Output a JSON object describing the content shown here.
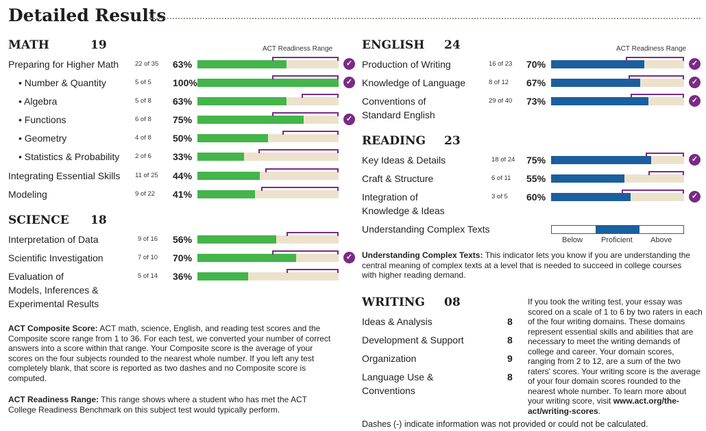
{
  "title": "Detailed Results",
  "readiness_label": "ACT Readiness Range",
  "math": {
    "name": "MATH",
    "score": "19",
    "rows": [
      {
        "label": "Preparing for Higher Math",
        "frac": "22 of 35",
        "pct": "63%",
        "value": 63,
        "range": [
          53,
          100
        ],
        "check": true
      },
      {
        "label": "• Number & Quantity",
        "frac": "5 of 5",
        "pct": "100%",
        "value": 100,
        "range": [
          53,
          100
        ],
        "check": true
      },
      {
        "label": "• Algebra",
        "frac": "5 of 8",
        "pct": "63%",
        "value": 63,
        "range": [
          74,
          100
        ],
        "check": false
      },
      {
        "label": "• Functions",
        "frac": "6 of 8",
        "pct": "75%",
        "value": 75,
        "range": [
          53,
          100
        ],
        "check": true
      },
      {
        "label": "• Geometry",
        "frac": "4 of 8",
        "pct": "50%",
        "value": 50,
        "range": [
          60,
          100
        ],
        "check": false
      },
      {
        "label": "• Statistics & Probability",
        "frac": "2 of 6",
        "pct": "33%",
        "value": 33,
        "range": [
          43,
          100
        ],
        "check": false
      },
      {
        "label": "Integrating Essential Skills",
        "frac": "11 of 25",
        "pct": "44%",
        "value": 44,
        "range": [
          48,
          100
        ],
        "check": false
      },
      {
        "label": "Modeling",
        "frac": "9 of 22",
        "pct": "41%",
        "value": 41,
        "range": [
          45,
          100
        ],
        "check": false
      }
    ]
  },
  "science": {
    "name": "SCIENCE",
    "score": "18",
    "rows": [
      {
        "label": "Interpretation of Data",
        "frac": "9 of 16",
        "pct": "56%",
        "value": 56,
        "range": [
          63,
          100
        ],
        "check": false
      },
      {
        "label": "Scientific Investigation",
        "frac": "7 of 10",
        "pct": "70%",
        "value": 70,
        "range": [
          53,
          100
        ],
        "check": true
      },
      {
        "label": "Evaluation of\nModels, Inferences &\nExperimental Results",
        "frac": "5 of 14",
        "pct": "36%",
        "value": 36,
        "range": [
          63,
          100
        ],
        "check": false
      }
    ]
  },
  "english": {
    "name": "ENGLISH",
    "score": "24",
    "rows": [
      {
        "label": "Production of Writing",
        "frac": "16 of 23",
        "pct": "70%",
        "value": 70,
        "range": [
          56,
          100
        ],
        "check": true
      },
      {
        "label": "Knowledge of Language",
        "frac": "8 of 12",
        "pct": "67%",
        "value": 67,
        "range": [
          58,
          100
        ],
        "check": true
      },
      {
        "label": "Conventions of\nStandard English",
        "frac": "29 of 40",
        "pct": "73%",
        "value": 73,
        "range": [
          60,
          100
        ],
        "check": true
      }
    ]
  },
  "reading": {
    "name": "READING",
    "score": "23",
    "rows": [
      {
        "label": "Key Ideas & Details",
        "frac": "18 of 24",
        "pct": "75%",
        "value": 75,
        "range": [
          71,
          100
        ],
        "check": true
      },
      {
        "label": "Craft & Structure",
        "frac": "6 of 11",
        "pct": "55%",
        "value": 55,
        "range": [
          73,
          100
        ],
        "check": false
      },
      {
        "label": "Integration of\nKnowledge & Ideas",
        "frac": "3 of 5",
        "pct": "60%",
        "value": 60,
        "range": [
          53,
          100
        ],
        "check": true
      }
    ],
    "uct_label": "Understanding Complex Texts",
    "uct_level": "Proficient",
    "uct_scale": [
      "Below",
      "Proficient",
      "Above"
    ]
  },
  "uct_note": {
    "lead": "Understanding Complex Texts:",
    "text": " This indicator lets you know if you are understanding the central meaning of complex texts at a level that is needed to succeed in college courses with higher reading demand."
  },
  "writing": {
    "name": "WRITING",
    "score": "08",
    "rows": [
      {
        "label": "Ideas & Analysis",
        "score": "8"
      },
      {
        "label": "Development & Support",
        "score": "8"
      },
      {
        "label": "Organization",
        "score": "9"
      },
      {
        "label": "Language Use &\nConventions",
        "score": "8"
      }
    ],
    "note": "If you took the writing test, your essay was scored on a scale of 1 to 6 by two raters in each of the four writing domains. These domains represent essential skills and abilities that are necessary to meet the writing demands of college and career. Your domain scores, ranging from 2 to 12, are a sum of the two raters' scores. Your writing score is the average of your four domain scores rounded to the nearest whole number. To learn more about your writing score, visit ",
    "link": "www.act.org/the-act/writing-scores",
    "link_end": "."
  },
  "composite_note": {
    "lead": "ACT Composite Score:",
    "text": " ACT math, science, English, and reading test scores and the Composite score range from 1 to 36. For each test, we converted your number of correct answers into a score within that range. Your Composite score is the average of your scores on the four subjects rounded to the nearest whole number. If you left any test completely blank, that score is reported as two dashes and no Composite score is computed."
  },
  "range_note": {
    "lead": "ACT Readiness Range:",
    "text": " This range shows where a student who has met the ACT College Readiness Benchmark on this subject test would typically perform."
  },
  "dashes_note": "Dashes (-) indicate information was not provided or could not be calculated.",
  "colors": {
    "math_fill": "#43b54a",
    "english_fill": "#1b5f9e",
    "range_bracket": "#7a2a86",
    "bar_bg": "#ece2cc"
  }
}
